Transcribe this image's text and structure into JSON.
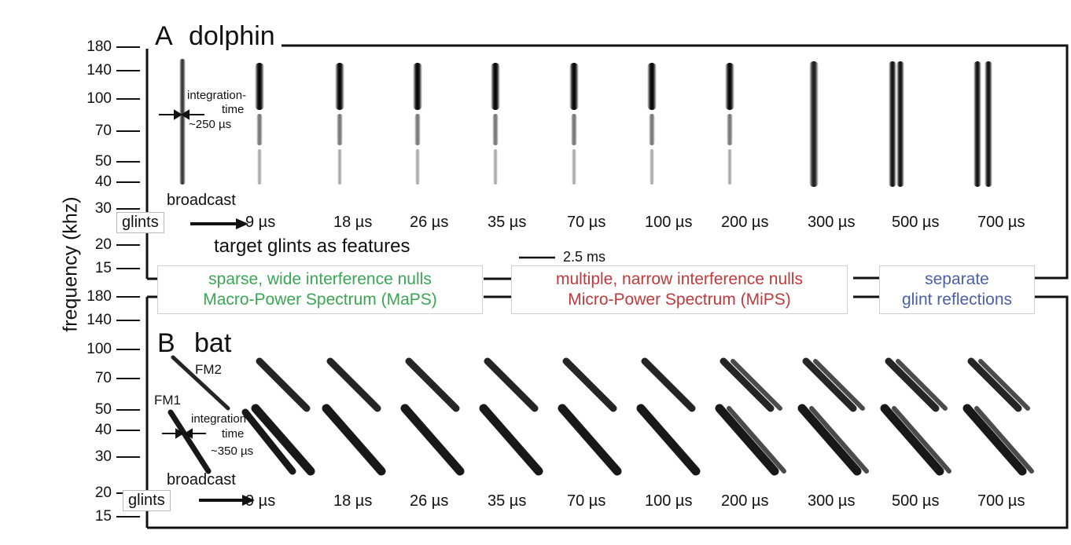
{
  "yaxis_label": "frequency (khz)",
  "panel_a": {
    "letter": "A",
    "name": "dolphin",
    "ticks": [
      "180",
      "140",
      "100",
      "70",
      "50",
      "40",
      "30",
      "20",
      "15"
    ],
    "integration_label": "integration-",
    "integration_label2": "time",
    "integration_value": "~250 µs",
    "broadcast": "broadcast",
    "glints": "glints",
    "glint_labels": [
      "9 µs",
      "18 µs",
      "26 µs",
      "35 µs",
      "70 µs",
      "100 µs",
      "200 µs",
      "300 µs",
      "500 µs",
      "700 µs"
    ],
    "features_caption": "target glints as features",
    "scale_bar": "2.5 ms"
  },
  "panel_b": {
    "letter": "B",
    "name": "bat",
    "ticks": [
      "180",
      "140",
      "100",
      "70",
      "50",
      "40",
      "30",
      "20",
      "15"
    ],
    "fm1": "FM1",
    "fm2": "FM2",
    "integration_label": "integration-",
    "integration_label2": "time",
    "integration_value": "~350 µs",
    "broadcast": "broadcast",
    "glints": "glints",
    "glint_labels": [
      "9 µs",
      "18 µs",
      "26 µs",
      "35 µs",
      "70 µs",
      "100 µs",
      "200 µs",
      "300 µs",
      "500 µs",
      "700 µs"
    ]
  },
  "boxes": {
    "maps_line1": "sparse, wide interference nulls",
    "maps_line2": "Macro-Power Spectrum (MaPS)",
    "mips_line1": "multiple, narrow interference nulls",
    "mips_line2": "Micro-Power Spectrum (MiPS)",
    "sep_line1": "separate",
    "sep_line2": "glint reflections",
    "colors": {
      "maps": "#3aa653",
      "mips": "#c0393b",
      "sep": "#4a5fa8"
    }
  }
}
